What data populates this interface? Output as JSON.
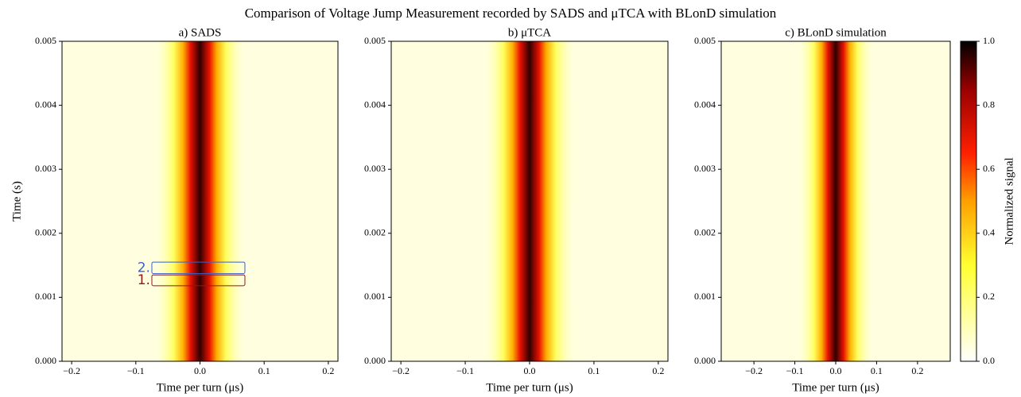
{
  "title": "Comparison of Voltage Jump Measurement recorded by SADS and μTCA with BLonD simulation",
  "colorbar": {
    "label": "Normalized signal",
    "lim": [
      0,
      1
    ],
    "ticks": [
      {
        "value": 0,
        "label": "0.0"
      },
      0.2,
      0.4,
      0.6,
      0.8,
      {
        "value": 1,
        "label": "1.0"
      }
    ]
  },
  "chart_data": [
    {
      "type": "heatmap",
      "title": "a) SADS",
      "xlabel": "Time per turn (μs)",
      "ylabel": "Time (s)",
      "xlim": [
        -0.215,
        0.215
      ],
      "xticks": [
        {
          "value": -0.2,
          "label": "−0.2"
        },
        {
          "value": -0.1,
          "label": "−0.1"
        },
        {
          "value": 0,
          "label": "0.0"
        },
        0.1,
        0.2
      ],
      "ylim": [
        0,
        0.005
      ],
      "yticks": [
        {
          "value": 0,
          "label": "0.000"
        },
        0.001,
        0.002,
        0.003,
        0.004,
        0.005
      ],
      "annotations": [
        {
          "text": "2.",
          "color": "#3a5fcd",
          "xrange": [
            -0.075,
            0.07
          ],
          "yrange": [
            0.00137,
            0.00155
          ]
        },
        {
          "text": "1.",
          "color": "#8b1a1a",
          "xrange": [
            -0.075,
            0.07
          ],
          "yrange": [
            0.00118,
            0.00135
          ]
        }
      ]
    },
    {
      "type": "heatmap",
      "title": "b) μTCA",
      "xlabel": "Time per turn (μs)",
      "xlim": [
        -0.215,
        0.215
      ],
      "xticks": [
        {
          "value": -0.2,
          "label": "−0.2"
        },
        {
          "value": -0.1,
          "label": "−0.1"
        },
        {
          "value": 0,
          "label": "0.0"
        },
        0.1,
        0.2
      ],
      "ylim": [
        0,
        0.005
      ],
      "yticks": [
        {
          "value": 0,
          "label": "0.000"
        },
        0.001,
        0.002,
        0.003,
        0.004,
        0.005
      ]
    },
    {
      "type": "heatmap",
      "title": "c) BLonD simulation",
      "xlabel": "Time per turn (μs)",
      "xlim": [
        -0.28,
        0.28
      ],
      "xticks": [
        {
          "value": -0.2,
          "label": "−0.2"
        },
        {
          "value": -0.1,
          "label": "−0.1"
        },
        {
          "value": 0,
          "label": "0.0"
        },
        0.1,
        0.2
      ],
      "ylim": [
        0,
        0.005
      ],
      "yticks": [
        {
          "value": 0,
          "label": "0.000"
        },
        0.001,
        0.002,
        0.003,
        0.004,
        0.005
      ]
    }
  ]
}
